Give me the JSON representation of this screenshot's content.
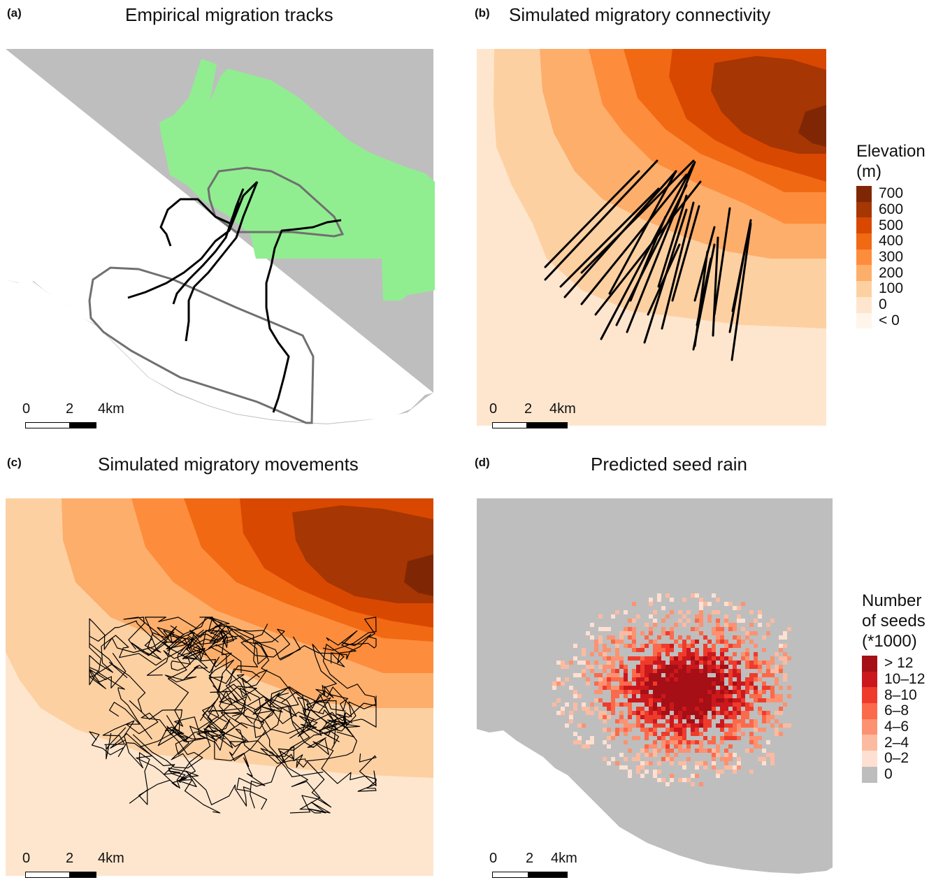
{
  "panels": [
    {
      "id": "a",
      "label": "(a)",
      "title": "Empirical migration tracks"
    },
    {
      "id": "b",
      "label": "(b)",
      "title": "Simulated migratory connectivity"
    },
    {
      "id": "c",
      "label": "(c)",
      "title": "Simulated migratory movements"
    },
    {
      "id": "d",
      "label": "(d)",
      "title": "Predicted seed rain"
    }
  ],
  "scalebar": {
    "ticks": [
      "0",
      "2",
      "4km"
    ]
  },
  "legend_elevation": {
    "title_line1": "Elevation",
    "title_line2": "(m)",
    "items": [
      {
        "label": "700",
        "color": "#7f2704"
      },
      {
        "label": "600",
        "color": "#a63603"
      },
      {
        "label": "500",
        "color": "#d94801"
      },
      {
        "label": "400",
        "color": "#f16913"
      },
      {
        "label": "300",
        "color": "#fd8d3c"
      },
      {
        "label": "200",
        "color": "#fdae6b"
      },
      {
        "label": "100",
        "color": "#fdd0a2"
      },
      {
        "label": "0",
        "color": "#fee6ce"
      },
      {
        "label": "< 0",
        "color": "#fff5eb"
      }
    ]
  },
  "legend_seeds": {
    "title_line1": "Number",
    "title_line2": "of seeds",
    "title_line3": "(*1000)",
    "items": [
      {
        "label": "> 12",
        "color": "#a50f15"
      },
      {
        "label": "10–12",
        "color": "#cb181d"
      },
      {
        "label": "8–10",
        "color": "#ef3b2c"
      },
      {
        "label": "6–8",
        "color": "#fb6a4a"
      },
      {
        "label": "4–6",
        "color": "#fc9272"
      },
      {
        "label": "2–4",
        "color": "#fcbba1"
      },
      {
        "label": "0–2",
        "color": "#fee0d2"
      },
      {
        "label": "0",
        "color": "#bdbdbd"
      }
    ]
  },
  "colors": {
    "background_land": "#bebebe",
    "habitat_green": "#90ee90",
    "track": "#000000",
    "home_range_outline": "#707070"
  }
}
